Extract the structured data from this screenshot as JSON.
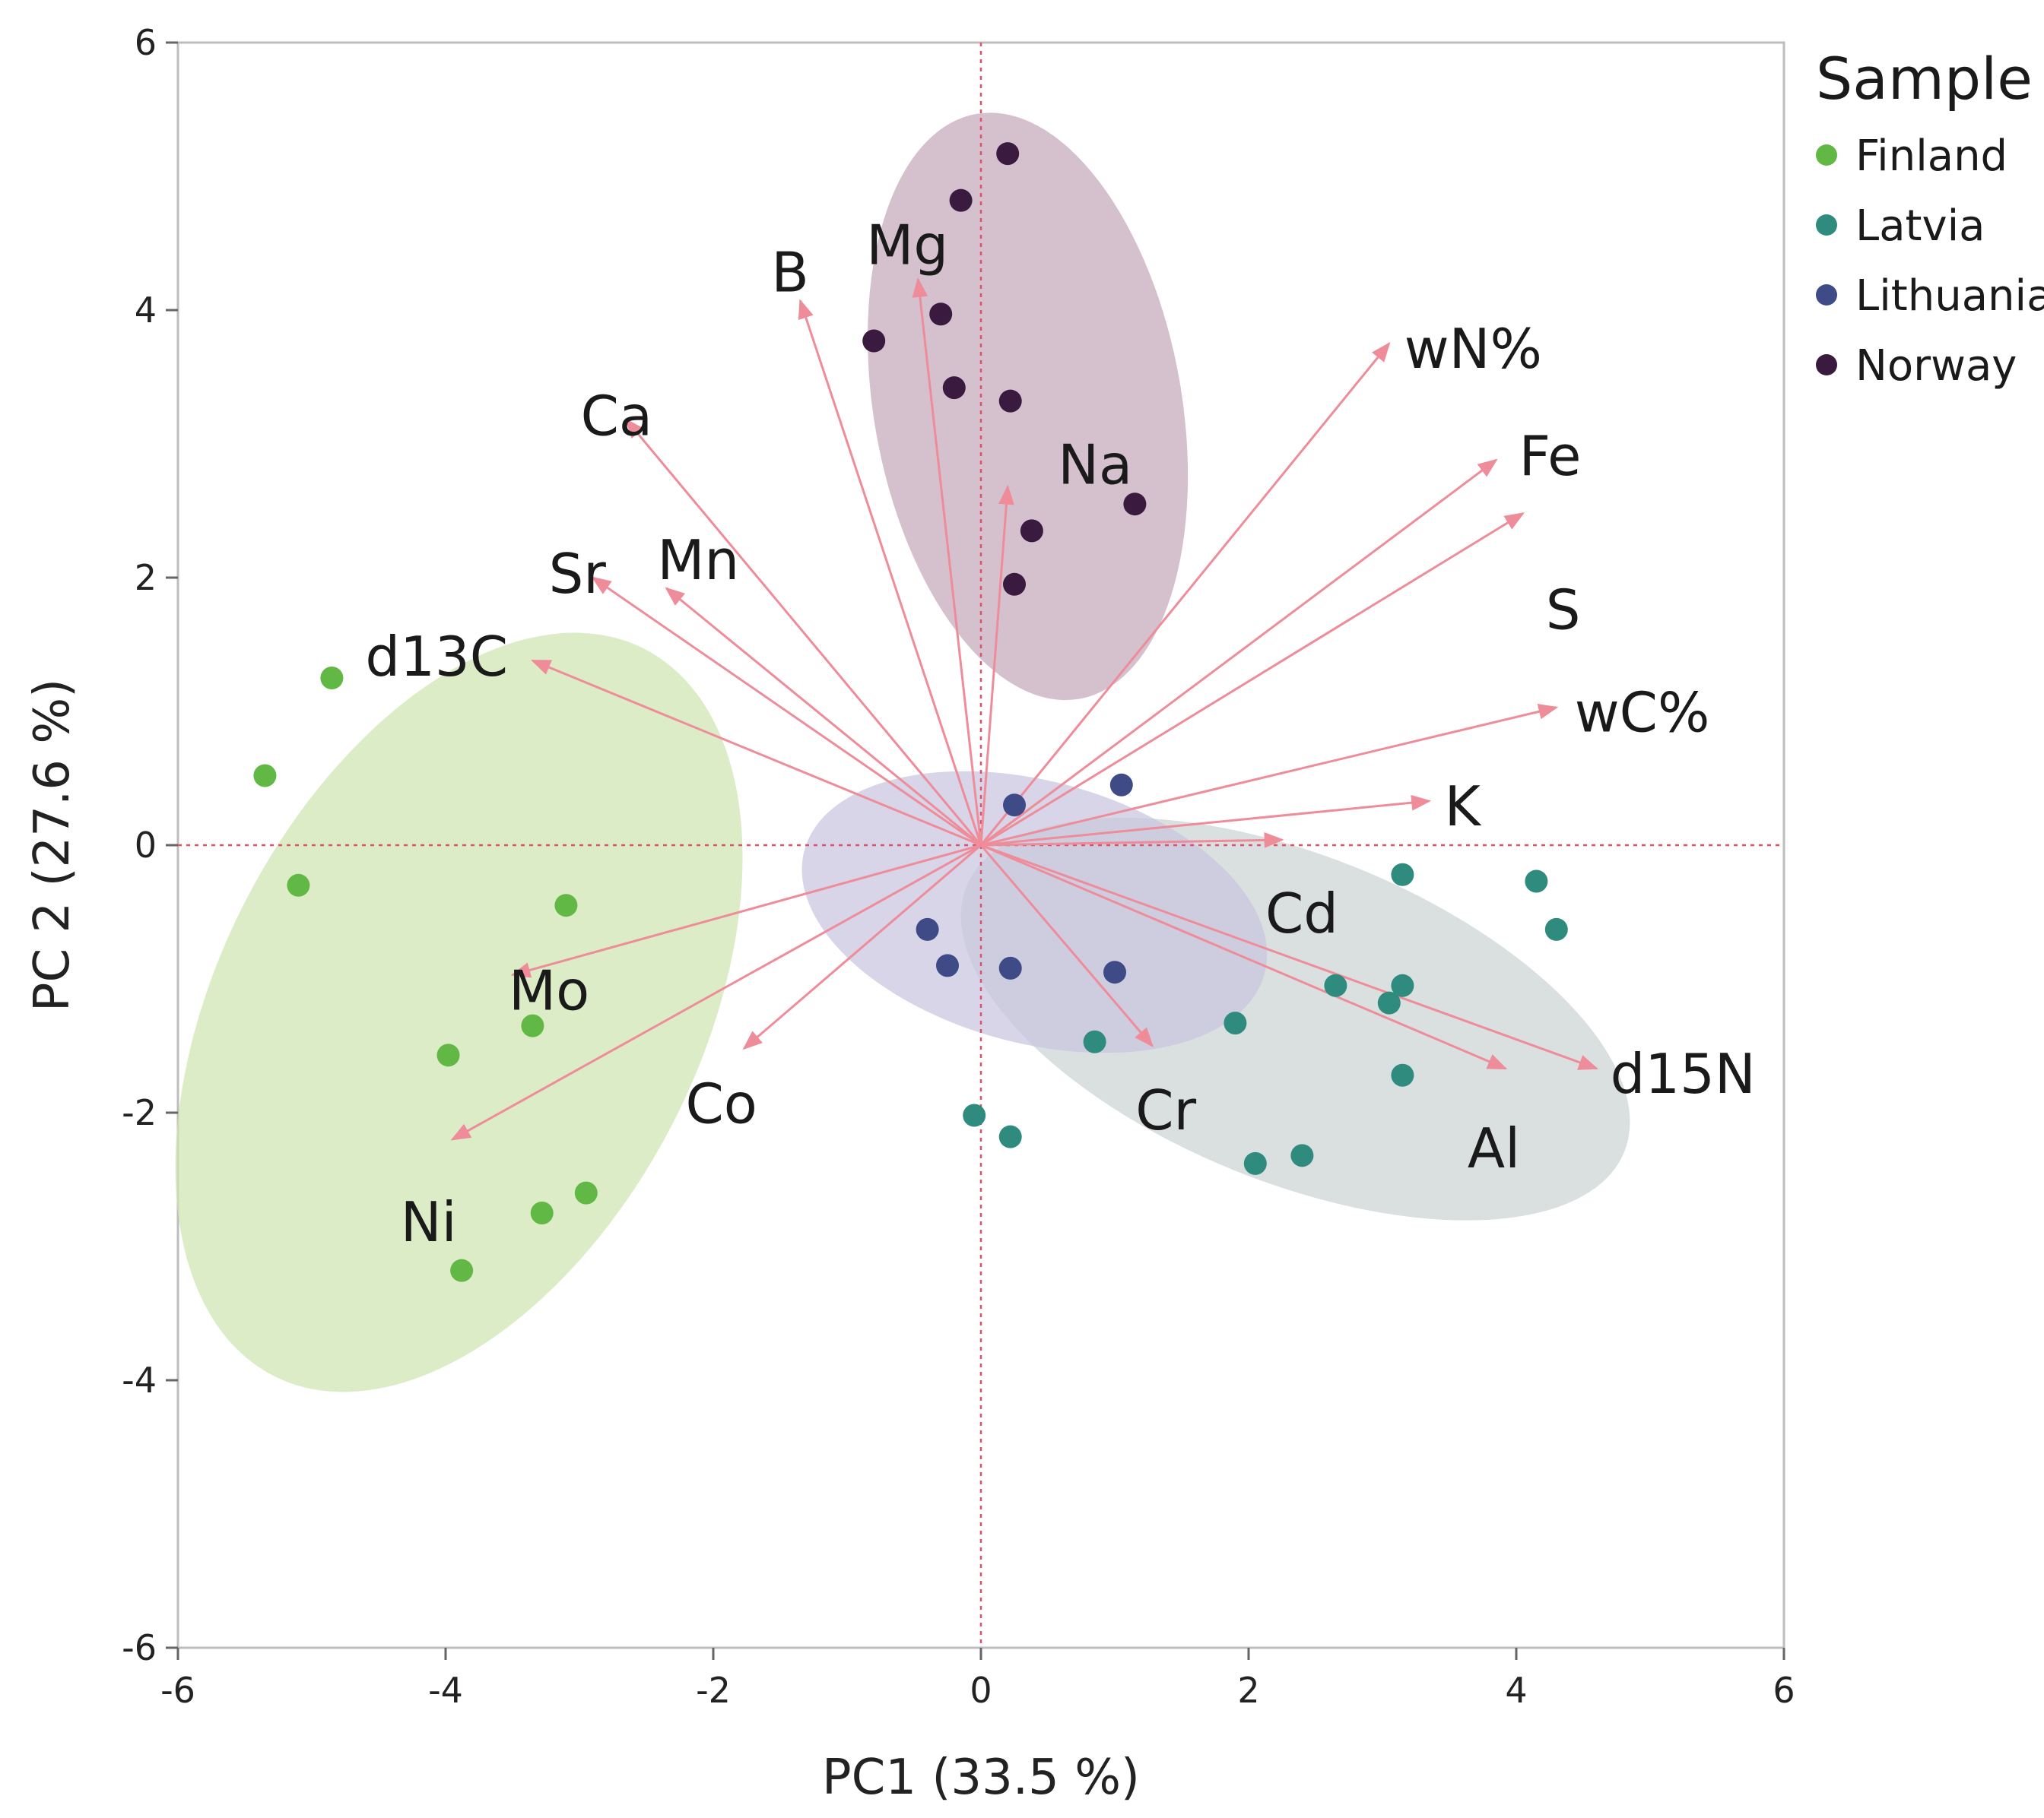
{
  "chart_data": {
    "type": "scatter",
    "subtype": "pca-biplot",
    "xlabel": "PC1  (33.5 %)",
    "ylabel": "PC 2  (27.6 %)",
    "xlim": [
      -6,
      6
    ],
    "ylim": [
      -6,
      6
    ],
    "xticks": [
      -6,
      -4,
      -2,
      0,
      2,
      4,
      6
    ],
    "yticks": [
      -6,
      -4,
      -2,
      0,
      2,
      4,
      6
    ],
    "reference_lines": [
      {
        "axis": "x",
        "value": 0
      },
      {
        "axis": "y",
        "value": 0
      }
    ],
    "legend": {
      "title": "Sample",
      "position": "top-right"
    },
    "series": [
      {
        "name": "Finland",
        "color": "#62b845",
        "ellipse_color": "#cfe6b4",
        "ellipse": {
          "cx": -3.9,
          "cy": -1.25,
          "rx": 1.8,
          "ry": 3.05,
          "angle_deg": 27
        },
        "points": [
          [
            -4.85,
            1.25
          ],
          [
            -5.35,
            0.52
          ],
          [
            -5.1,
            -0.3
          ],
          [
            -3.1,
            -0.45
          ],
          [
            -3.35,
            -1.35
          ],
          [
            -3.98,
            -1.57
          ],
          [
            -2.95,
            -2.6
          ],
          [
            -3.28,
            -2.75
          ],
          [
            -3.88,
            -3.18
          ]
        ]
      },
      {
        "name": "Latvia",
        "color": "#2e8b7e",
        "ellipse_color": "#cdd6d4",
        "ellipse": {
          "cx": 2.35,
          "cy": -1.3,
          "rx": 2.65,
          "ry": 1.22,
          "angle_deg": 22
        },
        "points": [
          [
            3.15,
            -0.22
          ],
          [
            4.15,
            -0.27
          ],
          [
            4.3,
            -0.63
          ],
          [
            2.65,
            -1.05
          ],
          [
            3.15,
            -1.05
          ],
          [
            3.05,
            -1.18
          ],
          [
            1.9,
            -1.33
          ],
          [
            0.85,
            -1.47
          ],
          [
            3.15,
            -1.72
          ],
          [
            -0.05,
            -2.02
          ],
          [
            0.22,
            -2.18
          ],
          [
            2.05,
            -2.38
          ],
          [
            2.4,
            -2.32
          ]
        ]
      },
      {
        "name": "Lithuania",
        "color": "#3f4b87",
        "ellipse_color": "#cac7df",
        "ellipse": {
          "cx": 0.4,
          "cy": -0.5,
          "rx": 1.78,
          "ry": 0.98,
          "angle_deg": 15
        },
        "points": [
          [
            0.25,
            0.3
          ],
          [
            1.05,
            0.45
          ],
          [
            -0.4,
            -0.63
          ],
          [
            -0.25,
            -0.9
          ],
          [
            0.22,
            -0.92
          ],
          [
            1.0,
            -0.95
          ]
        ]
      },
      {
        "name": "Norway",
        "color": "#3a1a3e",
        "ellipse_color": "#c6acbc",
        "ellipse": {
          "cx": 0.35,
          "cy": 3.28,
          "rx": 1.15,
          "ry": 2.22,
          "angle_deg": -10
        },
        "points": [
          [
            0.2,
            5.17
          ],
          [
            -0.15,
            4.82
          ],
          [
            -0.3,
            3.97
          ],
          [
            -0.8,
            3.77
          ],
          [
            -0.2,
            3.42
          ],
          [
            0.22,
            3.32
          ],
          [
            1.15,
            2.55
          ],
          [
            0.38,
            2.35
          ],
          [
            0.25,
            1.95
          ]
        ]
      }
    ],
    "loadings": [
      {
        "name": "Mg",
        "x": -0.47,
        "y": 4.23
      },
      {
        "name": "B",
        "x": -1.35,
        "y": 4.07
      },
      {
        "name": "Ca",
        "x": -2.65,
        "y": 3.18
      },
      {
        "name": "Na",
        "x": 0.2,
        "y": 2.68
      },
      {
        "name": "Sr",
        "x": -2.9,
        "y": 2.0
      },
      {
        "name": "Mn",
        "x": -2.35,
        "y": 1.92
      },
      {
        "name": "d13C",
        "x": -3.35,
        "y": 1.38
      },
      {
        "name": "wN%",
        "x": 3.05,
        "y": 3.75
      },
      {
        "name": "Fe",
        "x": 3.85,
        "y": 2.88
      },
      {
        "name": "S",
        "x": 4.05,
        "y": 2.48
      },
      {
        "name": "wC%",
        "x": 4.3,
        "y": 1.03
      },
      {
        "name": "K",
        "x": 3.35,
        "y": 0.33
      },
      {
        "name": "Cd",
        "x": 2.25,
        "y": 0.04
      },
      {
        "name": "Mo",
        "x": -3.5,
        "y": -0.97
      },
      {
        "name": "Co",
        "x": -1.77,
        "y": -1.52
      },
      {
        "name": "Ni",
        "x": -3.95,
        "y": -2.2
      },
      {
        "name": "Cr",
        "x": 1.28,
        "y": -1.5
      },
      {
        "name": "Al",
        "x": 3.92,
        "y": -1.67
      },
      {
        "name": "d15N",
        "x": 4.6,
        "y": -1.67
      }
    ]
  }
}
